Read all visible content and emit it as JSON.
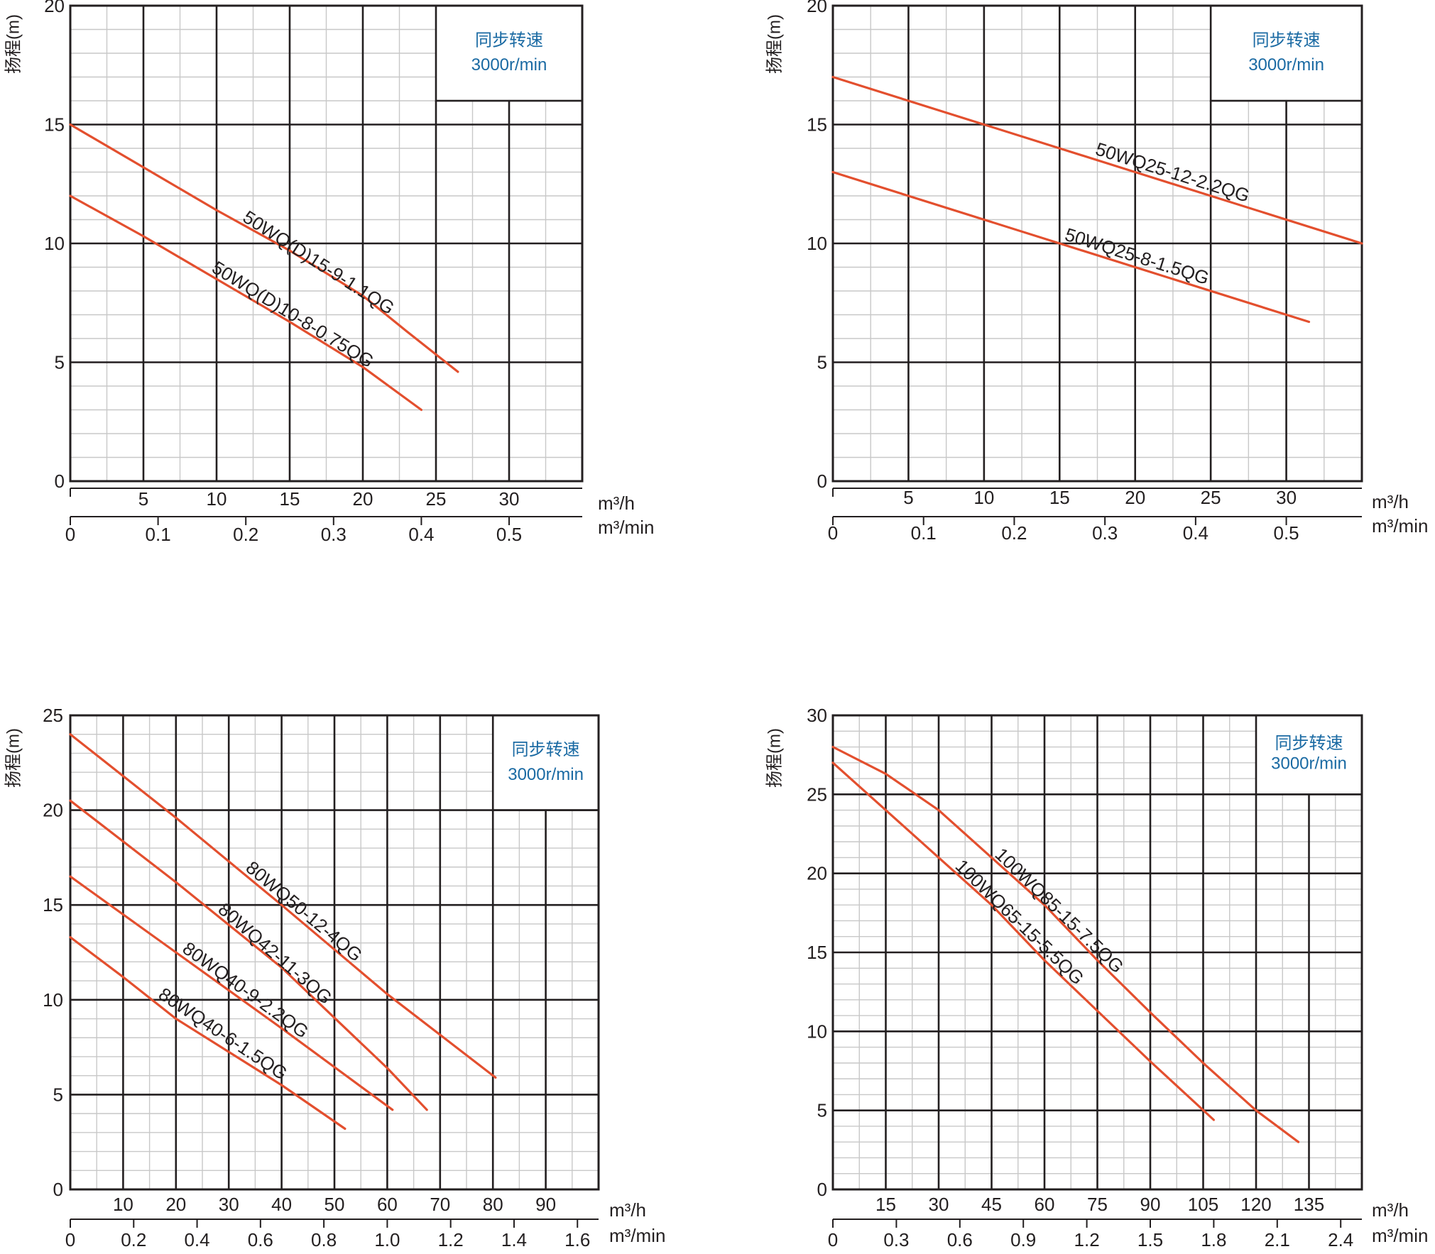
{
  "page": {
    "ylabel": "扬程(m)",
    "unit_h": "m³/h",
    "unit_min": "m³/min",
    "speed_title": "同步转速",
    "speed_value": "3000r/min"
  },
  "colors": {
    "curve": "#e34f2e",
    "major_grid": "#231f20",
    "minor_grid": "#c8c8c8",
    "speed_text": "#1a6aa3",
    "axis_text": "#231f20"
  },
  "chart_data": [
    {
      "type": "line",
      "name": "chart-50wq-small",
      "xlim": [
        0,
        35
      ],
      "ylim": [
        0,
        20
      ],
      "x_ticks_h": [
        5,
        10,
        15,
        20,
        25,
        30
      ],
      "x_ticks_h_labels": [
        "5",
        "10",
        "15",
        "20",
        "25",
        "30"
      ],
      "x_ticks_min": [
        0,
        0.1,
        0.2,
        0.3,
        0.4,
        0.5
      ],
      "x_ticks_min_labels": [
        "0",
        "0.1",
        "0.2",
        "0.3",
        "0.4",
        "0.5"
      ],
      "y_ticks": [
        0,
        5,
        10,
        15,
        20
      ],
      "y_ticks_labels": [
        "0",
        "5",
        "10",
        "15",
        "20"
      ],
      "legend_box": {
        "x": [
          25,
          35
        ],
        "y": [
          16,
          20
        ]
      },
      "series": [
        {
          "name": "50WQ(D)15-9-1.1QG",
          "x": [
            0,
            5,
            10,
            15,
            20,
            23,
            26.5
          ],
          "y": [
            15,
            13.2,
            11.4,
            9.7,
            7.8,
            6.3,
            4.6
          ],
          "label_from": 10.5,
          "label_to": 23
        },
        {
          "name": "50WQ(D)10-8-0.75QG",
          "x": [
            0,
            5,
            10,
            15,
            20,
            24
          ],
          "y": [
            12,
            10.3,
            8.5,
            6.7,
            4.8,
            3.0
          ],
          "label_from": 8.5,
          "label_to": 21.5
        }
      ]
    },
    {
      "type": "line",
      "name": "chart-50wq25",
      "xlim": [
        0,
        35
      ],
      "ylim": [
        0,
        20
      ],
      "x_ticks_h": [
        5,
        10,
        15,
        20,
        25,
        30
      ],
      "x_ticks_h_labels": [
        "5",
        "10",
        "15",
        "20",
        "25",
        "30"
      ],
      "x_ticks_min": [
        0,
        0.1,
        0.2,
        0.3,
        0.4,
        0.5
      ],
      "x_ticks_min_labels": [
        "0",
        "0.1",
        "0.2",
        "0.3",
        "0.4",
        "0.5"
      ],
      "y_ticks": [
        0,
        5,
        10,
        15,
        20
      ],
      "y_ticks_labels": [
        "0",
        "5",
        "10",
        "15",
        "20"
      ],
      "legend_box": {
        "x": [
          25,
          35
        ],
        "y": [
          16,
          20
        ]
      },
      "series": [
        {
          "name": "50WQ25-12-2.2QG",
          "x": [
            0,
            10,
            20,
            35
          ],
          "y": [
            17,
            15,
            13,
            10
          ],
          "label_from": 16.5,
          "label_to": 28.2
        },
        {
          "name": "50WQ25-8-1.5QG",
          "x": [
            0,
            15,
            31.5
          ],
          "y": [
            13,
            10,
            6.7
          ],
          "label_from": 14.8,
          "label_to": 25.2
        }
      ]
    },
    {
      "type": "line",
      "name": "chart-80wq",
      "xlim": [
        0,
        100
      ],
      "ylim": [
        0,
        25
      ],
      "x_ticks_h": [
        10,
        20,
        30,
        40,
        50,
        60,
        70,
        80,
        90
      ],
      "x_ticks_h_labels": [
        "10",
        "20",
        "30",
        "40",
        "50",
        "60",
        "70",
        "80",
        "90"
      ],
      "x_ticks_min": [
        0,
        0.2,
        0.4,
        0.6,
        0.8,
        1.0,
        1.2,
        1.4,
        1.6
      ],
      "x_ticks_min_labels": [
        "0",
        "0.2",
        "0.4",
        "0.6",
        "0.8",
        "1.0",
        "1.2",
        "1.4",
        "1.6"
      ],
      "y_ticks": [
        0,
        5,
        10,
        15,
        20,
        25
      ],
      "y_ticks_labels": [
        "0",
        "5",
        "10",
        "15",
        "20",
        "25"
      ],
      "legend_box": {
        "x": [
          80,
          100
        ],
        "y": [
          20,
          25
        ]
      },
      "series": [
        {
          "name": "80WQ50-12-4QG",
          "x": [
            0,
            20,
            40,
            60,
            80.5
          ],
          "y": [
            24,
            19.6,
            15,
            10.3,
            5.9
          ],
          "label_from": 30,
          "label_to": 57
        },
        {
          "name": "80WQ42-11-3QG",
          "x": [
            0,
            20,
            40,
            60,
            67.5
          ],
          "y": [
            20.5,
            16.2,
            11.7,
            6.4,
            4.2
          ],
          "label_from": 25,
          "label_to": 51
        },
        {
          "name": "80WQ40-9-2.2QG",
          "x": [
            0,
            20,
            40,
            61
          ],
          "y": [
            16.5,
            12.5,
            8.5,
            4.2
          ],
          "label_from": 18.5,
          "label_to": 46.5
        },
        {
          "name": "80WQ40-6-1.5QG",
          "x": [
            0,
            10,
            20,
            40,
            52
          ],
          "y": [
            13.3,
            11.2,
            9.0,
            5.5,
            3.2
          ],
          "label_from": 14,
          "label_to": 42.5
        }
      ]
    },
    {
      "type": "line",
      "name": "chart-100wq",
      "xlim": [
        0,
        150
      ],
      "ylim": [
        0,
        30
      ],
      "x_ticks_h": [
        15,
        30,
        45,
        60,
        75,
        90,
        105,
        120,
        135
      ],
      "x_ticks_h_labels": [
        "15",
        "30",
        "45",
        "60",
        "75",
        "90",
        "105",
        "120",
        "135"
      ],
      "x_ticks_min": [
        0,
        0.3,
        0.6,
        0.9,
        1.2,
        1.5,
        1.8,
        2.1,
        2.4
      ],
      "x_ticks_min_labels": [
        "0",
        "0.3",
        "0.6",
        "0.9",
        "1.2",
        "1.5",
        "1.8",
        "2.1",
        "2.4"
      ],
      "y_ticks": [
        0,
        5,
        10,
        15,
        20,
        25,
        30
      ],
      "y_ticks_labels": [
        "0",
        "5",
        "10",
        "15",
        "20",
        "25",
        "30"
      ],
      "legend_box": {
        "x": [
          120,
          150
        ],
        "y": [
          25,
          30
        ]
      },
      "series": [
        {
          "name": "100WQ85-15-7.5QG",
          "x": [
            0,
            15,
            30,
            45,
            60,
            75,
            90,
            105,
            120,
            132
          ],
          "y": [
            28,
            26.3,
            24,
            21,
            18,
            14.5,
            11.2,
            8,
            5,
            3
          ],
          "label_from": 41.5,
          "label_to": 84.5
        },
        {
          "name": "100WQ65-15-5.5QG",
          "x": [
            0,
            15,
            30,
            45,
            60,
            75,
            90,
            108
          ],
          "y": [
            27,
            24,
            21,
            18,
            14.5,
            11.3,
            8.1,
            4.4
          ],
          "label_from": 32,
          "label_to": 71.5
        }
      ]
    }
  ]
}
